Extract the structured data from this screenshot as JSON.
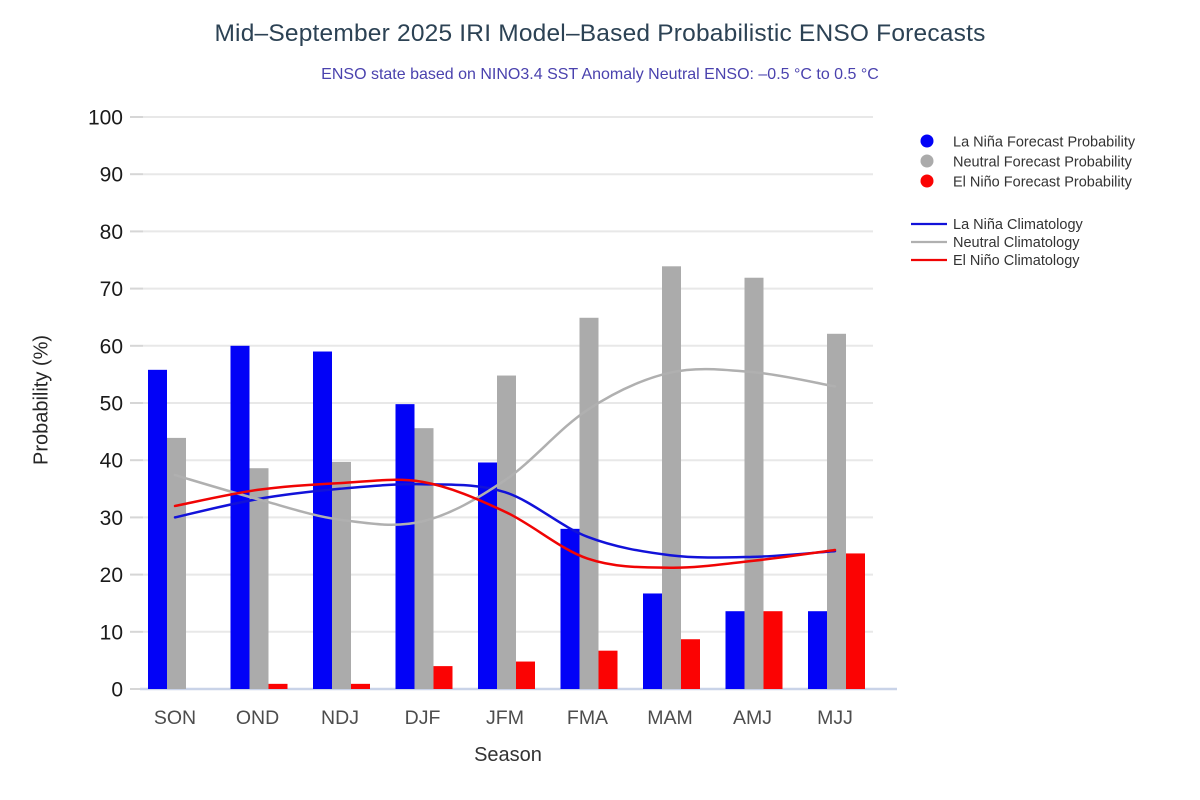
{
  "title": "Mid–September 2025 IRI Model–Based Probabilistic ENSO Forecasts",
  "subtitle": "ENSO state based on NINO3.4 SST Anomaly Neutral ENSO: –0.5 °C to 0.5 °C",
  "chart_data": {
    "type": "bar",
    "subtype": "grouped bars with overlaid climatology line series",
    "categories": [
      "SON",
      "OND",
      "NDJ",
      "DJF",
      "JFM",
      "FMA",
      "MAM",
      "AMJ",
      "MJJ"
    ],
    "xlabel": "Season",
    "ylabel": "Probability (%)",
    "ylim": [
      0,
      100
    ],
    "yticks": [
      0,
      10,
      20,
      30,
      40,
      50,
      60,
      70,
      80,
      90,
      100
    ],
    "grid": true,
    "legend_position": "top-right",
    "bar_series": [
      {
        "name": "La Niña Forecast Probability",
        "color": "#0202f7",
        "values": [
          55.8,
          60.0,
          59.0,
          49.8,
          39.6,
          28.0,
          16.7,
          13.6,
          13.6
        ]
      },
      {
        "name": "Neutral Forecast Probability",
        "color": "#ababab",
        "values": [
          43.9,
          38.6,
          39.7,
          45.6,
          54.8,
          64.9,
          73.9,
          71.9,
          62.1
        ]
      },
      {
        "name": "El Niño Forecast Probability",
        "color": "#fb0303",
        "values": [
          0,
          0.9,
          0.9,
          4.0,
          4.8,
          6.7,
          8.7,
          13.6,
          23.7
        ]
      }
    ],
    "line_series": [
      {
        "name": "La Niña Climatology",
        "color": "#1212d9",
        "values": [
          30.0,
          33.2,
          35.0,
          35.8,
          34.4,
          26.6,
          23.4,
          23.1,
          24.1
        ]
      },
      {
        "name": "Neutral Climatology",
        "color": "#b0b0b0",
        "values": [
          37.4,
          33.2,
          29.6,
          29.3,
          36.5,
          48.8,
          55.3,
          55.4,
          52.9
        ]
      },
      {
        "name": "El Niño Climatology",
        "color": "#f00404",
        "values": [
          32.0,
          34.8,
          36.0,
          36.2,
          31.0,
          22.8,
          21.2,
          22.4,
          24.3
        ]
      }
    ]
  },
  "colors": {
    "title": "#2c4254",
    "subtitle": "#4a42ae",
    "gridline": "#e8e8e8",
    "baseline": "#c9d3e8",
    "tick": "#d6d6d6",
    "y_tick_label": "#1a1a1a",
    "x_tick_label": "#4d4d4d",
    "axis_title": "#262626",
    "legend_text": "#333333"
  }
}
